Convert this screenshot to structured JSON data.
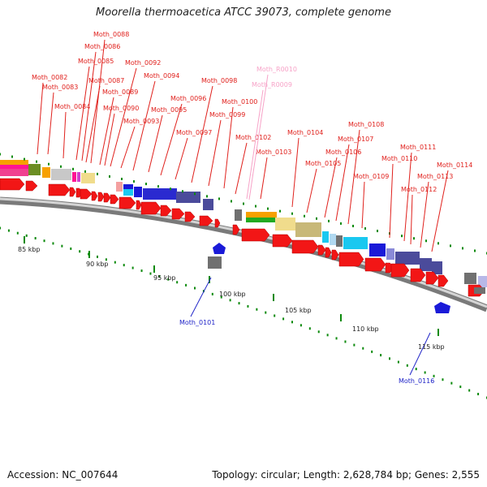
{
  "title": "Moorella thermoacetica ATCC 39073, complete genome",
  "footer": {
    "accession": "Accession: NC_007644",
    "summary": "Topology: circular; Length: 2,628,784 bp; Genes: 2,555"
  },
  "colors": {
    "forward_label": "#e0201c",
    "reverse_label": "#1f24c8",
    "rna_label": "#f7a3c8",
    "cds": "#f21616",
    "tick": "#0c8a0c",
    "backbone": "#9a9a9a"
  },
  "scale_labels": [
    "85 kbp",
    "90 kbp",
    "95 kbp",
    "100 kbp",
    "105 kbp",
    "110 kbp",
    "115 kbp"
  ],
  "forward_labels": [
    "Moth_0082",
    "Moth_0083",
    "Moth_0084",
    "Moth_0085",
    "Moth_0086",
    "Moth_0087",
    "Moth_0088",
    "Moth_0089",
    "Moth_0090",
    "Moth_0092",
    "Moth_0093",
    "Moth_0094",
    "Moth_0095",
    "Moth_0096",
    "Moth_0097",
    "Moth_0098",
    "Moth_0099",
    "Moth_0100",
    "Moth_0102",
    "Moth_0103",
    "Moth_0104",
    "Moth_0105",
    "Moth_0106",
    "Moth_0107",
    "Moth_0108",
    "Moth_0109",
    "Moth_0110",
    "Moth_0111",
    "Moth_0112",
    "Moth_0113",
    "Moth_0114"
  ],
  "rna_labels": [
    "Moth_R0010",
    "Moth_R0009"
  ],
  "reverse_labels": [
    "Moth_0101",
    "Moth_0116"
  ]
}
